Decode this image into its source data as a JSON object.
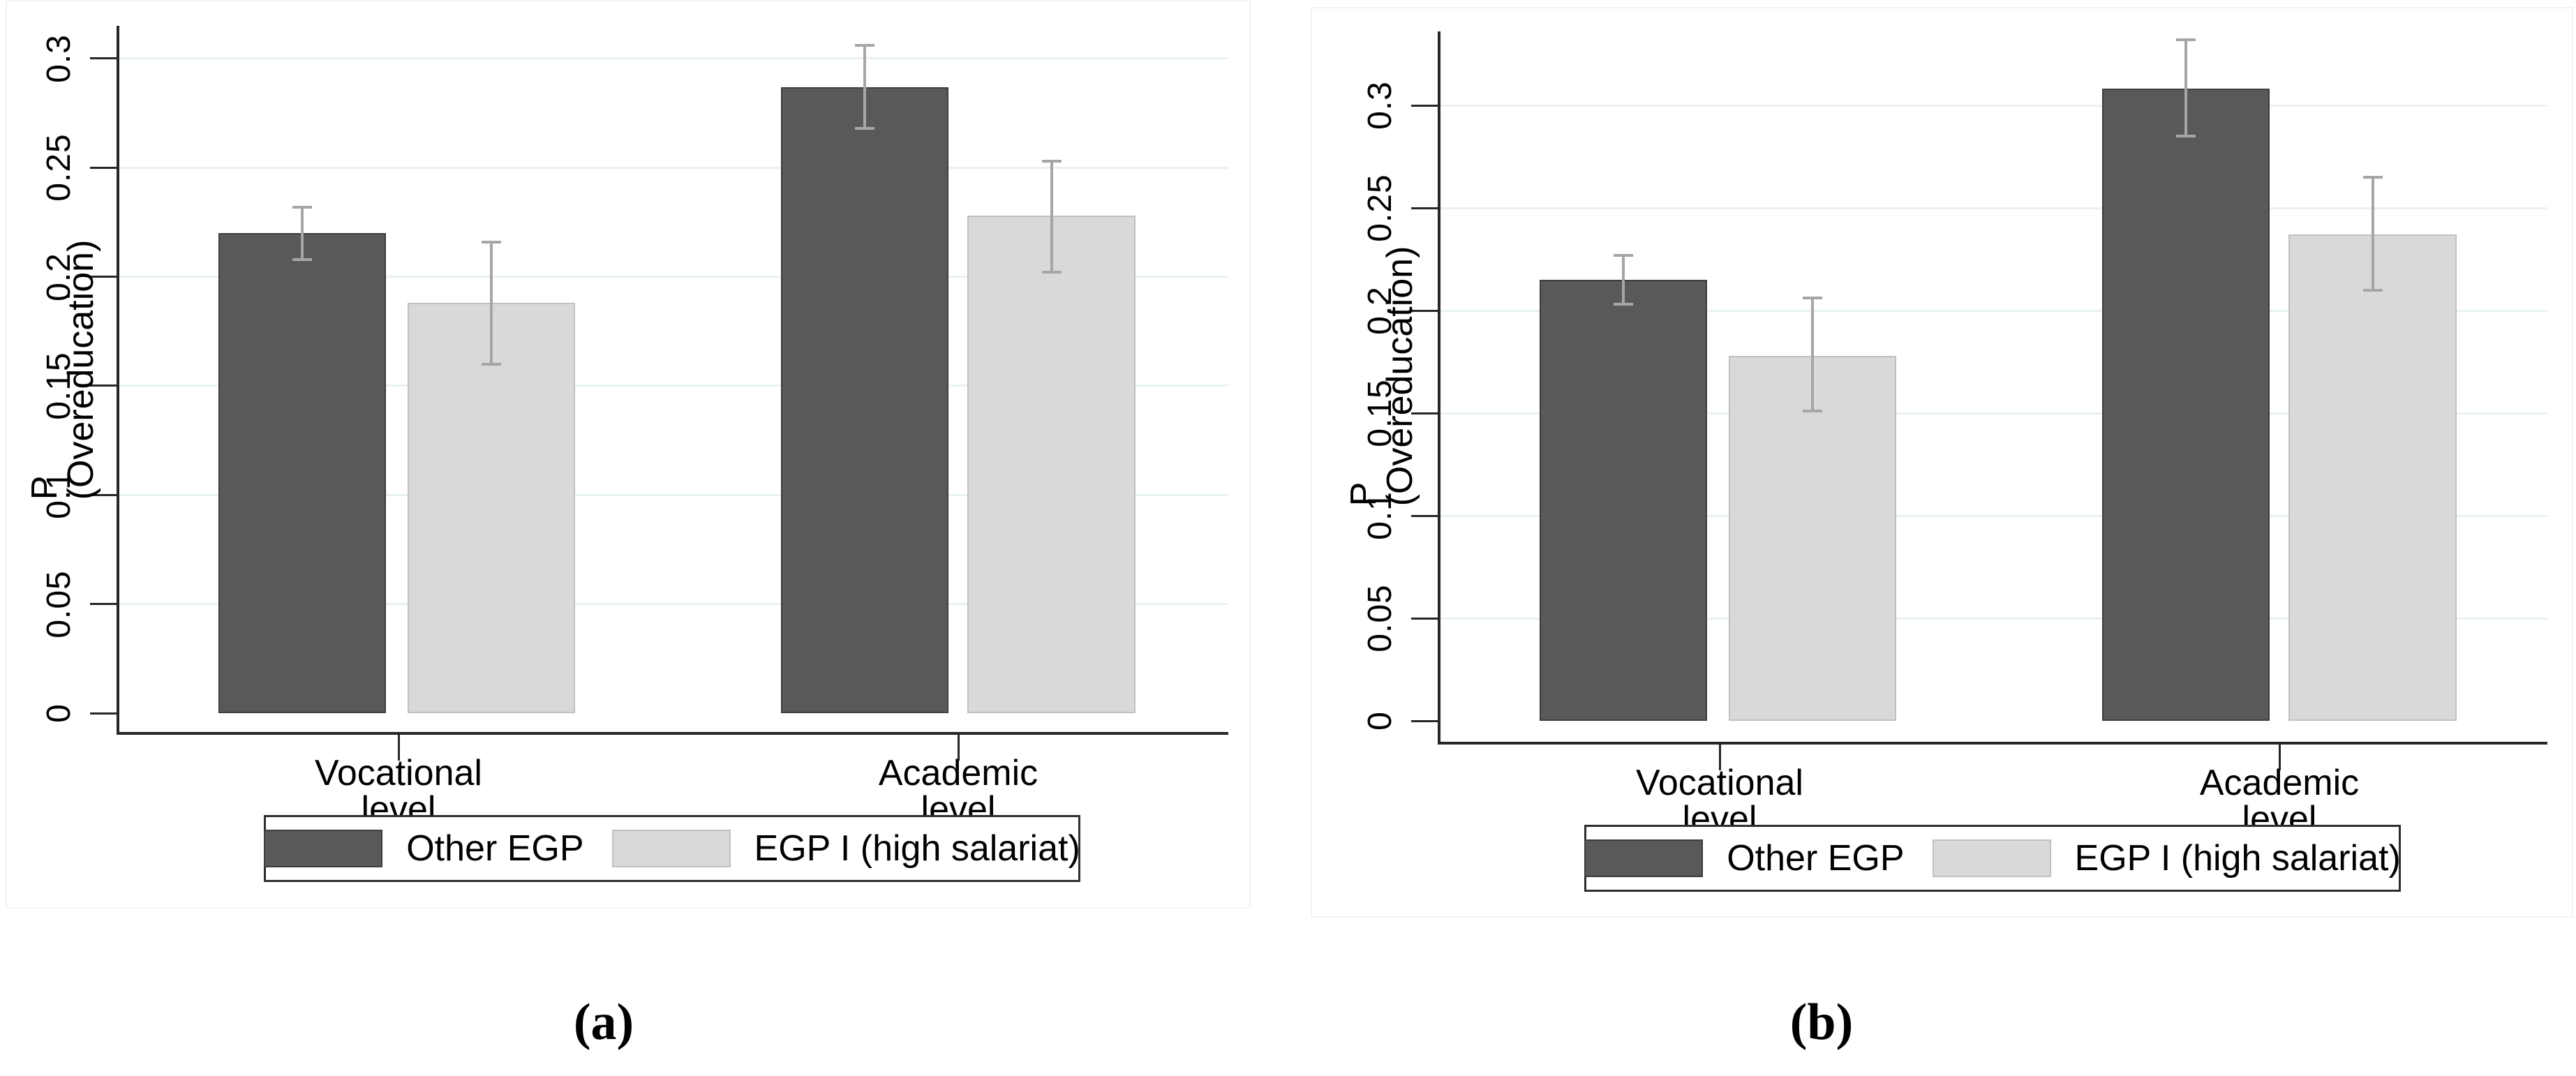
{
  "figure": {
    "background": "#ffffff",
    "captions": {
      "a": "(a)",
      "b": "(b)"
    }
  },
  "colors": {
    "bar_dark": "#595959",
    "bar_dark_border": "#3d3d3d",
    "bar_light": "#d9d9d9",
    "bar_light_border": "#c0c0c0",
    "error_bar": "#a6a6a6",
    "gridline": "#e9f1f3",
    "axis": "#262626",
    "text": "#000000",
    "region_border": "#eef4f5",
    "legend_border": "#2e2e2e"
  },
  "chart_data": [
    {
      "id": "a",
      "type": "bar",
      "caption": "(a)",
      "ylabel": "P (Overeducation)",
      "categories": [
        "Vocational level",
        "Academic level"
      ],
      "yticks": [
        {
          "value": 0,
          "label": "0"
        },
        {
          "value": 0.05,
          "label": "0.05"
        },
        {
          "value": 0.1,
          "label": "0.1"
        },
        {
          "value": 0.15,
          "label": "0.15"
        },
        {
          "value": 0.2,
          "label": "0.2"
        },
        {
          "value": 0.25,
          "label": "0.25"
        },
        {
          "value": 0.3,
          "label": "0.3"
        }
      ],
      "ylim": [
        0,
        0.317
      ],
      "grid": true,
      "legend_position": "bottom",
      "series": [
        {
          "name": "Other EGP",
          "swatch": "dark",
          "values": [
            0.22,
            0.287
          ],
          "ci_low": [
            0.208,
            0.268
          ],
          "ci_high": [
            0.232,
            0.306
          ]
        },
        {
          "name": "EGP I (high salariat)",
          "swatch": "light",
          "values": [
            0.188,
            0.228
          ],
          "ci_low": [
            0.16,
            0.202
          ],
          "ci_high": [
            0.216,
            0.253
          ]
        }
      ]
    },
    {
      "id": "b",
      "type": "bar",
      "caption": "(b)",
      "ylabel": "P (Overeducation)",
      "categories": [
        "Vocational level",
        "Academic level"
      ],
      "yticks": [
        {
          "value": 0,
          "label": "0"
        },
        {
          "value": 0.05,
          "label": "0.05"
        },
        {
          "value": 0.1,
          "label": "0.1"
        },
        {
          "value": 0.15,
          "label": "0.15"
        },
        {
          "value": 0.2,
          "label": "0.2"
        },
        {
          "value": 0.25,
          "label": "0.25"
        },
        {
          "value": 0.3,
          "label": "0.3"
        }
      ],
      "ylim": [
        0,
        0.336
      ],
      "grid": true,
      "legend_position": "bottom",
      "series": [
        {
          "name": "Other EGP",
          "swatch": "dark",
          "values": [
            0.215,
            0.308
          ],
          "ci_low": [
            0.203,
            0.285
          ],
          "ci_high": [
            0.227,
            0.332
          ]
        },
        {
          "name": "EGP I (high salariat)",
          "swatch": "light",
          "values": [
            0.178,
            0.237
          ],
          "ci_low": [
            0.151,
            0.21
          ],
          "ci_high": [
            0.206,
            0.265
          ]
        }
      ]
    }
  ]
}
